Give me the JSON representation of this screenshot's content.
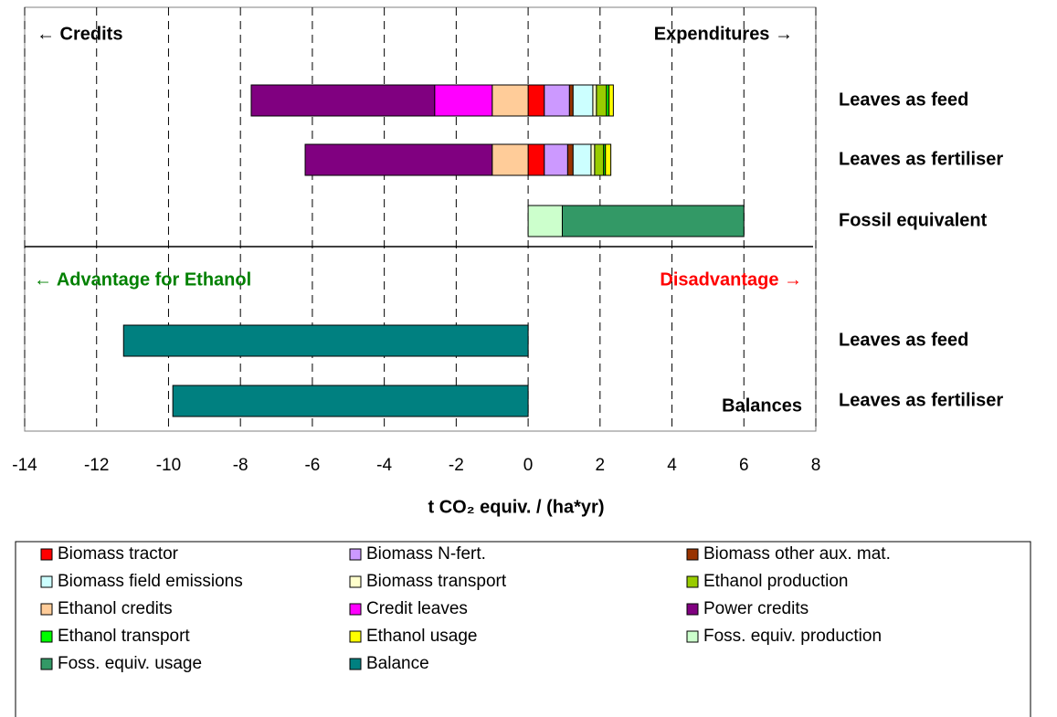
{
  "chart_data": {
    "type": "stacked-bar-horizontal",
    "xlabel": "t CO₂ equiv. / (ha*yr)",
    "annotations": [
      "← Credits",
      "Expenditures →",
      "← Advantage for Ethanol",
      "Disadvantage →",
      "Balances"
    ],
    "categories": [
      "Leaves as feed",
      "Leaves as fertiliser",
      "Fossil equivalent",
      "Leaves as feed",
      "Leaves as fertiliser"
    ],
    "xlim": [
      -14,
      8
    ],
    "xticks": [
      -14,
      -12,
      -10,
      -8,
      -6,
      -4,
      -2,
      0,
      2,
      4,
      6,
      8
    ],
    "grid": true,
    "series": [
      {
        "name": "Biomass tractor",
        "color": "#ff0000",
        "values": [
          0.45,
          0.45,
          null,
          null,
          null
        ]
      },
      {
        "name": "Biomass N-fert.",
        "color": "#cc99ff",
        "values": [
          0.7,
          0.65,
          null,
          null,
          null
        ]
      },
      {
        "name": "Biomass other aux. mat.",
        "color": "#993300",
        "values": [
          0.1,
          0.15,
          null,
          null,
          null
        ]
      },
      {
        "name": "Biomass field emissions",
        "color": "#ccffff",
        "values": [
          0.55,
          0.5,
          null,
          null,
          null
        ]
      },
      {
        "name": "Biomass transport",
        "color": "#ffffcc",
        "values": [
          0.1,
          0.1,
          null,
          null,
          null
        ]
      },
      {
        "name": "Ethanol production",
        "color": "#99cc00",
        "values": [
          0.28,
          0.25,
          null,
          null,
          null
        ]
      },
      {
        "name": "Ethanol credits",
        "color": "#ffcc99",
        "values": [
          -1.0,
          -1.0,
          null,
          null,
          null
        ]
      },
      {
        "name": "Credit leaves",
        "color": "#ff00ff",
        "values": [
          -1.6,
          null,
          null,
          null,
          null
        ]
      },
      {
        "name": "Power credits",
        "color": "#800080",
        "values": [
          -5.1,
          -5.2,
          null,
          null,
          null
        ]
      },
      {
        "name": "Ethanol transport",
        "color": "#00ff00",
        "values": [
          0.07,
          0.05,
          null,
          null,
          null
        ]
      },
      {
        "name": "Ethanol usage",
        "color": "#ffff00",
        "values": [
          0.12,
          0.15,
          null,
          null,
          null
        ]
      },
      {
        "name": "Foss. equiv. production",
        "color": "#ccffcc",
        "values": [
          null,
          null,
          0.95,
          null,
          null
        ]
      },
      {
        "name": "Foss. equiv. usage",
        "color": "#339966",
        "values": [
          null,
          null,
          5.05,
          null,
          null
        ]
      },
      {
        "name": "Balance",
        "color": "#008080",
        "values": [
          null,
          null,
          null,
          -11.25,
          -9.88
        ]
      }
    ]
  }
}
